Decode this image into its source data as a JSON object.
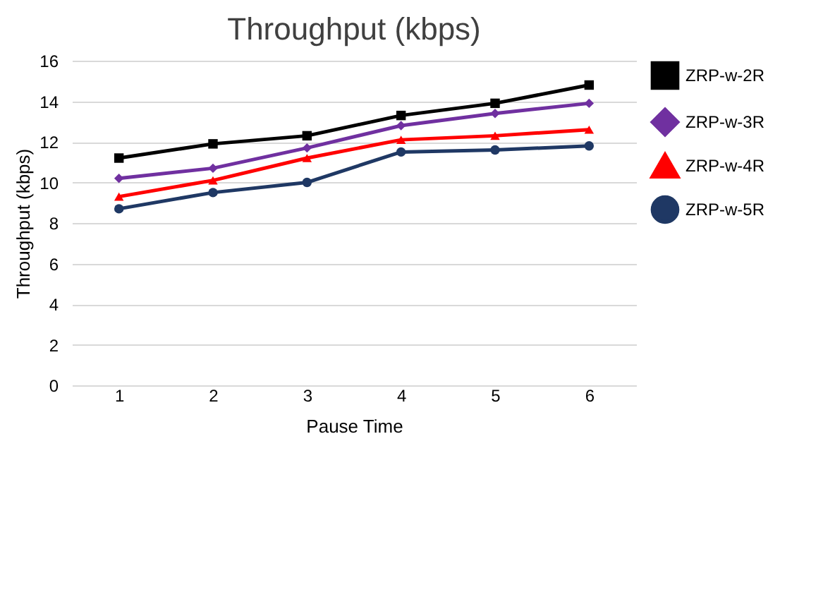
{
  "chart_data": {
    "type": "line",
    "title": "Throughput (kbps)",
    "xlabel": "Pause Time",
    "ylabel": "Throughput (kbps)",
    "categories": [
      "1",
      "2",
      "3",
      "4",
      "5",
      "6"
    ],
    "series": [
      {
        "name": "ZRP-w-2R",
        "color": "#000000",
        "marker": "square",
        "values": [
          11.2,
          11.9,
          12.3,
          13.3,
          13.9,
          14.8
        ]
      },
      {
        "name": "ZRP-w-3R",
        "color": "#7030a0",
        "marker": "diamond",
        "values": [
          10.2,
          10.7,
          11.7,
          12.8,
          13.4,
          13.9
        ]
      },
      {
        "name": "ZRP-w-4R",
        "color": "#ff0000",
        "marker": "triangle",
        "values": [
          9.3,
          10.1,
          11.2,
          12.1,
          12.3,
          12.6
        ]
      },
      {
        "name": "ZRP-w-5R",
        "color": "#1f3864",
        "marker": "circle",
        "values": [
          8.7,
          9.5,
          10.0,
          11.5,
          11.6,
          11.8
        ]
      }
    ],
    "ylim": [
      0,
      16
    ],
    "yticks": [
      0,
      2,
      4,
      6,
      8,
      10,
      12,
      14,
      16
    ],
    "grid": "y",
    "legend": "top right",
    "line_style": "solid"
  }
}
